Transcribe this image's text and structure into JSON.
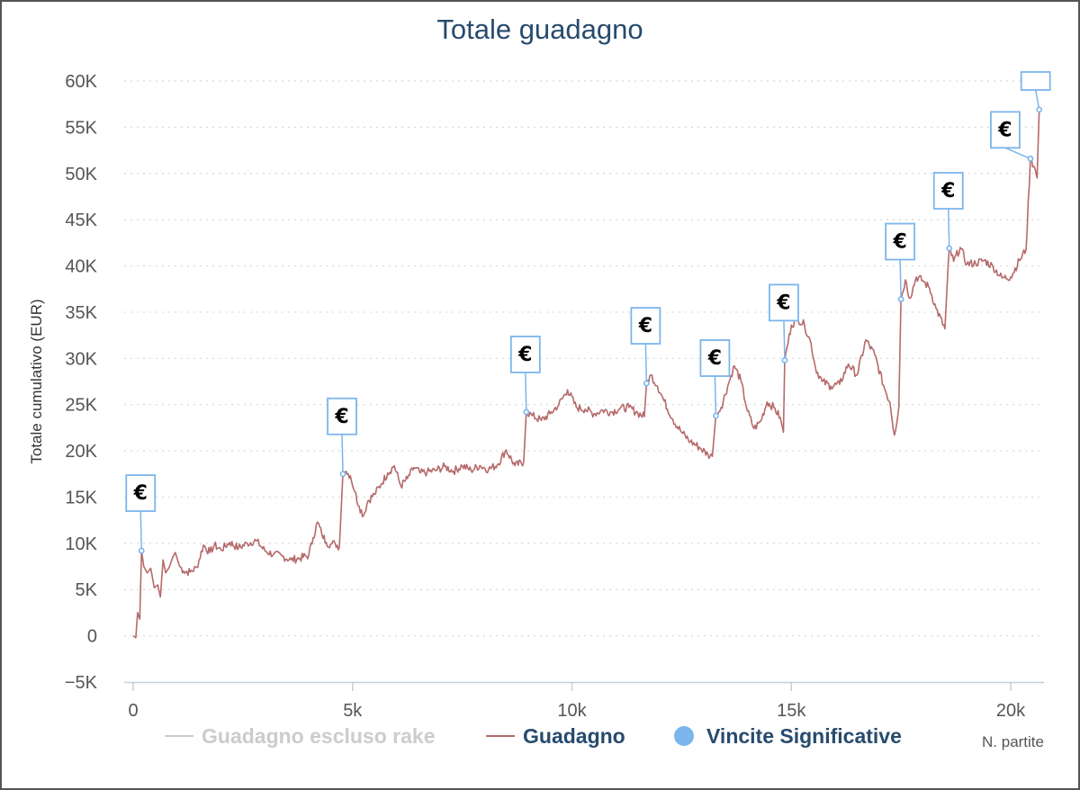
{
  "chart_data": {
    "type": "line",
    "title": "Totale guadagno",
    "ylabel": "Totale cumulativo (EUR)",
    "xlabel": "N. partite",
    "xlim": [
      0,
      20800
    ],
    "ylim": [
      -5000,
      60000
    ],
    "x_ticks": [
      0,
      5000,
      10000,
      15000,
      20000
    ],
    "x_tick_labels": [
      "0",
      "5k",
      "10k",
      "15k",
      "20k"
    ],
    "y_ticks": [
      -5000,
      0,
      5000,
      10000,
      15000,
      20000,
      25000,
      30000,
      35000,
      40000,
      45000,
      50000,
      55000,
      60000
    ],
    "y_tick_labels": [
      "−5K",
      "0",
      "5K",
      "10K",
      "15K",
      "20K",
      "25K",
      "30K",
      "35K",
      "40K",
      "45K",
      "50K",
      "55K",
      "60K"
    ],
    "grid": true,
    "legend_position": "bottom",
    "series": [
      {
        "name": "Guadagno escluso rake",
        "color": "#cccccc",
        "visible": false,
        "points": []
      },
      {
        "name": "Guadagno",
        "color": "#b56a6a",
        "visible": true,
        "points": [
          [
            0,
            0
          ],
          [
            60,
            -200
          ],
          [
            100,
            2500
          ],
          [
            150,
            1800
          ],
          [
            190,
            9200
          ],
          [
            240,
            7500
          ],
          [
            320,
            6800
          ],
          [
            400,
            7300
          ],
          [
            480,
            5200
          ],
          [
            560,
            5500
          ],
          [
            620,
            4200
          ],
          [
            680,
            8200
          ],
          [
            740,
            6800
          ],
          [
            820,
            7400
          ],
          [
            900,
            8500
          ],
          [
            960,
            9000
          ],
          [
            1050,
            7600
          ],
          [
            1150,
            7000
          ],
          [
            1300,
            6900
          ],
          [
            1450,
            7400
          ],
          [
            1600,
            9800
          ],
          [
            1750,
            9000
          ],
          [
            1850,
            9800
          ],
          [
            2000,
            9300
          ],
          [
            2200,
            10100
          ],
          [
            2400,
            9500
          ],
          [
            2600,
            10000
          ],
          [
            2800,
            10300
          ],
          [
            3000,
            9200
          ],
          [
            3200,
            8800
          ],
          [
            3400,
            8600
          ],
          [
            3600,
            8200
          ],
          [
            3800,
            8400
          ],
          [
            4000,
            8700
          ],
          [
            4100,
            10600
          ],
          [
            4200,
            12300
          ],
          [
            4300,
            11000
          ],
          [
            4400,
            10100
          ],
          [
            4500,
            9900
          ],
          [
            4600,
            10000
          ],
          [
            4700,
            9600
          ],
          [
            4780,
            17500
          ],
          [
            4850,
            17800
          ],
          [
            4950,
            17300
          ],
          [
            5050,
            15600
          ],
          [
            5150,
            14000
          ],
          [
            5250,
            13000
          ],
          [
            5350,
            14600
          ],
          [
            5500,
            15300
          ],
          [
            5650,
            16400
          ],
          [
            5800,
            17600
          ],
          [
            5950,
            18400
          ],
          [
            6100,
            16200
          ],
          [
            6250,
            17000
          ],
          [
            6400,
            18200
          ],
          [
            6550,
            17600
          ],
          [
            6700,
            17700
          ],
          [
            6900,
            17900
          ],
          [
            7100,
            18300
          ],
          [
            7300,
            17800
          ],
          [
            7500,
            18400
          ],
          [
            7700,
            17900
          ],
          [
            7900,
            18400
          ],
          [
            8100,
            18000
          ],
          [
            8300,
            18500
          ],
          [
            8500,
            20100
          ],
          [
            8700,
            18400
          ],
          [
            8900,
            18800
          ],
          [
            8960,
            24200
          ],
          [
            9100,
            23800
          ],
          [
            9300,
            23300
          ],
          [
            9500,
            24000
          ],
          [
            9700,
            25000
          ],
          [
            9900,
            26600
          ],
          [
            10100,
            24700
          ],
          [
            10300,
            24500
          ],
          [
            10500,
            24000
          ],
          [
            10700,
            24400
          ],
          [
            10900,
            24200
          ],
          [
            11100,
            24600
          ],
          [
            11300,
            24700
          ],
          [
            11500,
            24100
          ],
          [
            11650,
            23700
          ],
          [
            11700,
            27300
          ],
          [
            11800,
            28200
          ],
          [
            11950,
            27000
          ],
          [
            12100,
            25400
          ],
          [
            12300,
            23400
          ],
          [
            12500,
            22000
          ],
          [
            12700,
            21000
          ],
          [
            12900,
            20400
          ],
          [
            13100,
            19600
          ],
          [
            13200,
            19400
          ],
          [
            13280,
            23800
          ],
          [
            13400,
            24700
          ],
          [
            13550,
            27000
          ],
          [
            13700,
            29200
          ],
          [
            13850,
            27600
          ],
          [
            14000,
            24300
          ],
          [
            14150,
            22400
          ],
          [
            14300,
            23200
          ],
          [
            14450,
            25300
          ],
          [
            14600,
            24700
          ],
          [
            14750,
            23600
          ],
          [
            14820,
            22000
          ],
          [
            14850,
            29800
          ],
          [
            15000,
            33600
          ],
          [
            15150,
            34300
          ],
          [
            15300,
            33600
          ],
          [
            15450,
            31600
          ],
          [
            15550,
            29000
          ],
          [
            15700,
            27500
          ],
          [
            15900,
            27000
          ],
          [
            16100,
            27200
          ],
          [
            16300,
            29400
          ],
          [
            16500,
            28200
          ],
          [
            16700,
            32000
          ],
          [
            16900,
            30400
          ],
          [
            17100,
            27100
          ],
          [
            17250,
            25200
          ],
          [
            17350,
            21700
          ],
          [
            17450,
            24700
          ],
          [
            17500,
            36400
          ],
          [
            17600,
            38500
          ],
          [
            17700,
            36500
          ],
          [
            17850,
            38800
          ],
          [
            18000,
            38400
          ],
          [
            18150,
            37600
          ],
          [
            18300,
            35400
          ],
          [
            18500,
            33200
          ],
          [
            18600,
            41900
          ],
          [
            18700,
            40500
          ],
          [
            18850,
            42000
          ],
          [
            19000,
            40200
          ],
          [
            19200,
            40300
          ],
          [
            19400,
            40600
          ],
          [
            19600,
            39900
          ],
          [
            19800,
            38700
          ],
          [
            20000,
            38800
          ],
          [
            20200,
            40600
          ],
          [
            20350,
            41800
          ],
          [
            20450,
            51600
          ],
          [
            20550,
            50600
          ],
          [
            20600,
            49500
          ],
          [
            20650,
            56900
          ]
        ]
      },
      {
        "name": "Vincite Significative",
        "color": "#7cb5ec",
        "visible": true,
        "points": [
          [
            190,
            9200
          ],
          [
            4780,
            17500
          ],
          [
            8960,
            24200
          ],
          [
            11700,
            27300
          ],
          [
            13280,
            23800
          ],
          [
            14850,
            29800
          ],
          [
            17500,
            36400
          ],
          [
            18600,
            41900
          ],
          [
            20450,
            51600
          ],
          [
            20650,
            56900
          ]
        ]
      }
    ],
    "flag_label": "€",
    "flags": [
      {
        "x": 190,
        "y": 9200
      },
      {
        "x": 4780,
        "y": 17500
      },
      {
        "x": 8960,
        "y": 24200
      },
      {
        "x": 11700,
        "y": 27300
      },
      {
        "x": 13280,
        "y": 23800
      },
      {
        "x": 14850,
        "y": 29800
      },
      {
        "x": 17500,
        "y": 36400
      },
      {
        "x": 18600,
        "y": 41900
      },
      {
        "x": 20450,
        "y": 51600
      },
      {
        "x": 20650,
        "y": 56900
      }
    ],
    "legend": [
      {
        "name": "Guadagno escluso rake",
        "color": "#cccccc",
        "text_color": "#cccccc",
        "symbol": "line"
      },
      {
        "name": "Guadagno",
        "color": "#b56a6a",
        "text_color": "#274b6d",
        "symbol": "line"
      },
      {
        "name": "Vincite Significative",
        "color": "#7cb5ec",
        "text_color": "#274b6d",
        "symbol": "dot"
      }
    ]
  }
}
